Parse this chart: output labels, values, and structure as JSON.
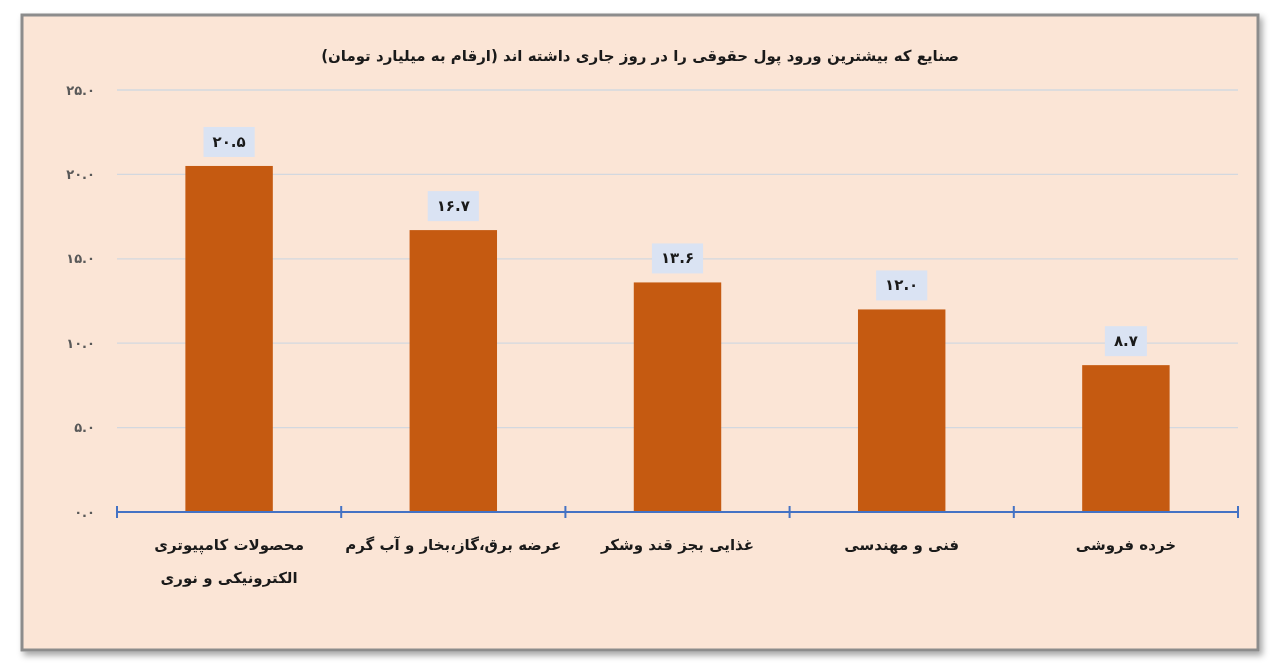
{
  "chart_data": {
    "type": "bar",
    "title": "صنایع که بیشترین ورود پول حقوقی را در روز جاری داشته اند (ارقام به میلیارد تومان)",
    "categories": [
      "محصولات کامپیوتری الکترونیکی و نوری",
      "عرضه برق،گاز،بخار و آب گرم",
      "غذایی بجز قند وشکر",
      "فنی و مهندسی",
      "خرده فروشی"
    ],
    "values": [
      20.5,
      16.7,
      13.6,
      12.0,
      8.7
    ],
    "value_labels": [
      "۲۰.۵",
      "۱۶.۷",
      "۱۳.۶",
      "۱۲.۰",
      "۸.۷"
    ],
    "color": "#c55a11",
    "ylim": [
      0,
      25
    ],
    "yticks": [
      {
        "value": 0,
        "label": "۰.۰"
      },
      {
        "value": 5,
        "label": "۵.۰"
      },
      {
        "value": 10,
        "label": "۱۰.۰"
      },
      {
        "value": 15,
        "label": "۱۵.۰"
      },
      {
        "value": 20,
        "label": "۲۰.۰"
      },
      {
        "value": 25,
        "label": "۲۵.۰"
      }
    ],
    "grid": "y"
  }
}
